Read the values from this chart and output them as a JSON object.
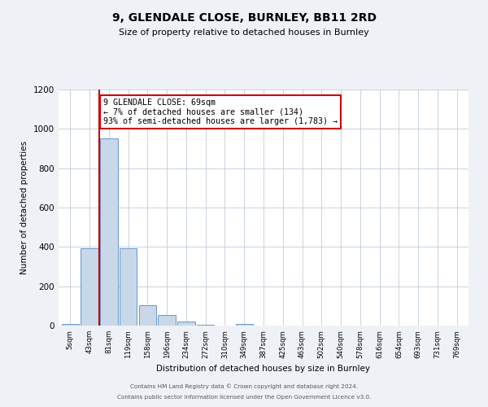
{
  "title": "9, GLENDALE CLOSE, BURNLEY, BB11 2RD",
  "subtitle": "Size of property relative to detached houses in Burnley",
  "xlabel": "Distribution of detached houses by size in Burnley",
  "ylabel": "Number of detached properties",
  "bar_labels": [
    "5sqm",
    "43sqm",
    "81sqm",
    "119sqm",
    "158sqm",
    "196sqm",
    "234sqm",
    "272sqm",
    "310sqm",
    "349sqm",
    "387sqm",
    "425sqm",
    "463sqm",
    "502sqm",
    "540sqm",
    "578sqm",
    "616sqm",
    "654sqm",
    "693sqm",
    "731sqm",
    "769sqm"
  ],
  "bar_values": [
    10,
    395,
    950,
    395,
    105,
    55,
    22,
    5,
    0,
    10,
    0,
    0,
    0,
    0,
    0,
    0,
    0,
    0,
    0,
    0,
    0
  ],
  "bar_color": "#c8d8e8",
  "bar_edge_color": "#6699cc",
  "highlight_color": "#cc0000",
  "red_line_x": 1.5,
  "annotation_text": "9 GLENDALE CLOSE: 69sqm\n← 7% of detached houses are smaller (134)\n93% of semi-detached houses are larger (1,783) →",
  "annotation_box_color": "#ffffff",
  "annotation_box_edge": "#cc0000",
  "ylim": [
    0,
    1200
  ],
  "yticks": [
    0,
    200,
    400,
    600,
    800,
    1000,
    1200
  ],
  "footer1": "Contains HM Land Registry data © Crown copyright and database right 2024.",
  "footer2": "Contains public sector information licensed under the Open Government Licence v3.0.",
  "background_color": "#eef2f7",
  "plot_bg_color": "#ffffff"
}
